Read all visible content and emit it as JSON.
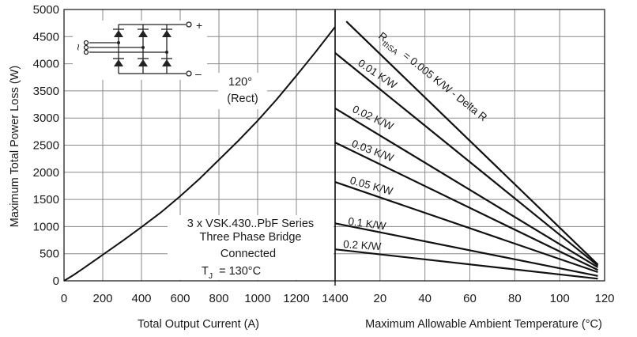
{
  "chart_data": [
    {
      "type": "line",
      "title": "",
      "xlabel": "Total Output Current (A)",
      "ylabel": "Maximum Total Power Loss (W)",
      "xlim": [
        0,
        1400
      ],
      "ylim": [
        0,
        5000
      ],
      "x_ticks": [
        "0",
        "200",
        "400",
        "600",
        "800",
        "1000",
        "1200",
        "1400"
      ],
      "y_ticks": [
        "0",
        "500",
        "1000",
        "1500",
        "2000",
        "2500",
        "3000",
        "3500",
        "4000",
        "4500",
        "5000"
      ],
      "grid": true,
      "series": [
        {
          "name": "120° (Rect)",
          "x": [
            0,
            50,
            100,
            200,
            300,
            400,
            500,
            600,
            700,
            800,
            900,
            1000,
            1100,
            1200,
            1300,
            1400
          ],
          "y": [
            0,
            110,
            230,
            480,
            730,
            990,
            1260,
            1560,
            1880,
            2230,
            2580,
            2950,
            3350,
            3780,
            4220,
            4680
          ]
        }
      ],
      "annotations": {
        "curve_label_line1": "120°",
        "curve_label_line2": "(Rect)",
        "device_line1": "3 x VSK.430..PbF Series",
        "device_line2": "Three Phase Bridge",
        "device_line3": "Connected",
        "tj_symbol": "T",
        "tj_subscript": "J",
        "tj_value": "=   130°C"
      },
      "schematic": {
        "plus": "+",
        "minus": "–",
        "input_mark": "~"
      }
    },
    {
      "type": "line",
      "title": "",
      "xlabel": "Maximum Allowable Ambient Temperature (°C)",
      "ylabel": "",
      "xlim": [
        0,
        120
      ],
      "ylim": [
        0,
        5000
      ],
      "x_ticks": [
        "20",
        "40",
        "60",
        "80",
        "100",
        "120"
      ],
      "grid": true,
      "series_labels": {
        "rth_symbol": "R",
        "rth_subscript": "thSA",
        "first": "= 0.005 K/W - Delta R",
        "others": [
          "0.01 K/W",
          "0.02 K/W",
          "0.03 K/W",
          "0.05 K/W",
          "0.1 K/W",
          "0.2 K/W"
        ]
      },
      "series": [
        {
          "rth": "0.005 K/W",
          "x": [
            5,
            117
          ],
          "y": [
            4780,
            300
          ]
        },
        {
          "rth": "0.01 K/W",
          "x": [
            0,
            117
          ],
          "y": [
            4200,
            280
          ]
        },
        {
          "rth": "0.02 K/W",
          "x": [
            0,
            117
          ],
          "y": [
            3180,
            250
          ]
        },
        {
          "rth": "0.03 K/W",
          "x": [
            0,
            117
          ],
          "y": [
            2550,
            200
          ]
        },
        {
          "rth": "0.05 K/W",
          "x": [
            0,
            117
          ],
          "y": [
            1820,
            160
          ]
        },
        {
          "rth": "0.1 K/W",
          "x": [
            0,
            117
          ],
          "y": [
            1060,
            90
          ]
        },
        {
          "rth": "0.2 K/W",
          "x": [
            0,
            117
          ],
          "y": [
            580,
            40
          ]
        }
      ]
    }
  ]
}
